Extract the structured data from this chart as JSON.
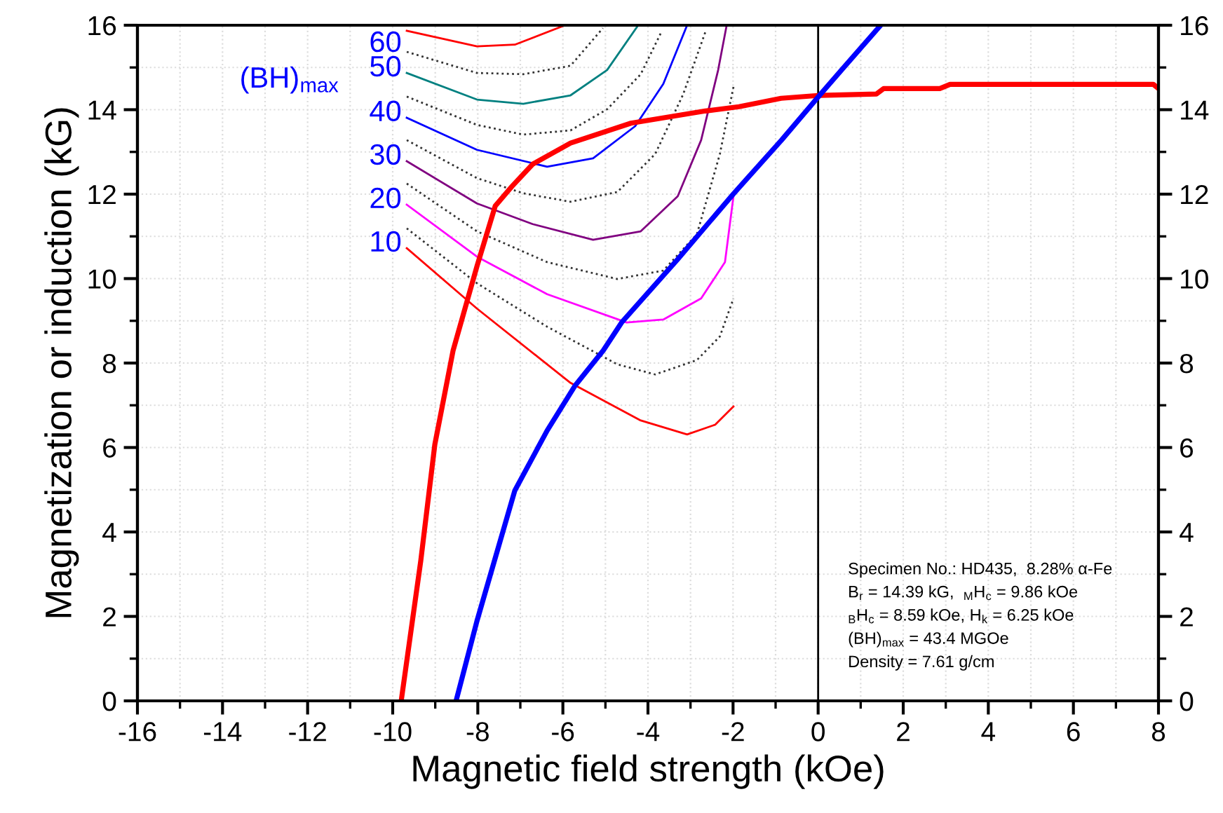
{
  "chart_data": {
    "type": "line",
    "xlabel": "Magnetic field strength (kOe)",
    "ylabel": "Magnetization or induction (kG)",
    "xlim": [
      -16,
      8
    ],
    "xticks": [
      -16,
      -14,
      -12,
      -10,
      -8,
      -6,
      -4,
      -2,
      0,
      2,
      4,
      6,
      8
    ],
    "ylim": [
      0,
      16
    ],
    "yticks": [
      0,
      2,
      4,
      6,
      8,
      10,
      12,
      14,
      16
    ],
    "y2lim": [
      0,
      16
    ],
    "y2ticks": [
      0,
      2,
      4,
      6,
      8,
      10,
      12,
      14,
      16
    ],
    "grid": true,
    "legend": false,
    "marker": "none",
    "ref_lines": [
      {
        "axis": "x",
        "value": 0,
        "color": "#000000",
        "line_style": "solid"
      }
    ],
    "series": [
      {
        "color": "#ff0000",
        "line_style": "solid",
        "x": [
          -9.8,
          -9.34,
          -9.01,
          -8.58,
          -8.02,
          -7.59,
          -7.2,
          -6.71,
          -5.82,
          -4.4,
          -2.65,
          -1.86,
          -0.87,
          0.05,
          1.37,
          1.54,
          2.86,
          3.1,
          7.88,
          8.0
        ],
        "values": [
          0,
          3.32,
          6.07,
          8.3,
          10.29,
          11.72,
          12.18,
          12.71,
          13.21,
          13.68,
          13.97,
          14.07,
          14.27,
          14.34,
          14.37,
          14.5,
          14.5,
          14.6,
          14.6,
          14.5
        ]
      },
      {
        "color": "#0000ff",
        "line_style": "solid",
        "x": [
          -8.51,
          -8.02,
          -7.13,
          -6.37,
          -5.71,
          -5.05,
          -4.62,
          -3.3,
          -1.98,
          -0.86,
          0.06,
          0.55,
          1.47
        ],
        "values": [
          0,
          1.89,
          4.98,
          6.4,
          7.47,
          8.3,
          8.96,
          10.46,
          12.02,
          13.28,
          14.37,
          14.94,
          16.0
        ]
      },
      {
        "name": "10",
        "color": "#ff0000",
        "line_style": "solid",
        "x": [
          -9.67,
          -8.02,
          -5.82,
          -4.17,
          -3.08,
          -2.42,
          -1.99
        ],
        "values": [
          10.72,
          9.29,
          7.53,
          6.64,
          6.31,
          6.54,
          6.97
        ]
      },
      {
        "color": "#333333",
        "line_style": "dotted",
        "x": [
          -9.67,
          -8.02,
          -6.37,
          -4.72,
          -3.83,
          -2.85,
          -2.31,
          -1.99
        ],
        "values": [
          11.19,
          9.89,
          8.86,
          7.97,
          7.73,
          8.07,
          8.63,
          9.53
        ]
      },
      {
        "name": "20",
        "color": "#ff00ff",
        "line_style": "solid",
        "x": [
          -9.67,
          -8.02,
          -6.37,
          -4.5,
          -3.64,
          -2.75,
          -2.19,
          -1.99
        ],
        "values": [
          11.75,
          10.52,
          9.63,
          8.96,
          9.03,
          9.53,
          10.39,
          11.95
        ]
      },
      {
        "color": "#333333",
        "line_style": "dotted",
        "x": [
          -9.67,
          -8.02,
          -6.37,
          -4.72,
          -3.64,
          -2.85,
          -2.31,
          -1.99
        ],
        "values": [
          12.25,
          11.12,
          10.39,
          9.99,
          10.19,
          11.05,
          12.95,
          14.54
        ]
      },
      {
        "name": "30",
        "color": "#800080",
        "line_style": "solid",
        "x": [
          -9.67,
          -8.02,
          -6.71,
          -5.29,
          -4.17,
          -3.3,
          -2.75,
          -2.35,
          -2.15
        ],
        "values": [
          12.78,
          11.78,
          11.29,
          10.92,
          11.12,
          11.95,
          13.28,
          14.94,
          16.0
        ]
      },
      {
        "color": "#333333",
        "line_style": "dotted",
        "x": [
          -9.67,
          -8.02,
          -6.93,
          -5.82,
          -4.72,
          -3.83,
          -3.17,
          -2.64
        ],
        "values": [
          13.28,
          12.38,
          12.02,
          11.82,
          12.05,
          12.95,
          14.37,
          15.87
        ]
      },
      {
        "name": "40",
        "color": "#0000ff",
        "line_style": "solid",
        "x": [
          -9.67,
          -8.02,
          -6.37,
          -5.29,
          -4.3,
          -3.64,
          -3.08
        ],
        "values": [
          13.81,
          13.05,
          12.65,
          12.85,
          13.61,
          14.61,
          16.0
        ]
      },
      {
        "color": "#333333",
        "line_style": "dotted",
        "x": [
          -9.67,
          -8.02,
          -6.93,
          -5.82,
          -4.96,
          -4.17,
          -3.67
        ],
        "values": [
          14.31,
          13.64,
          13.41,
          13.51,
          14.01,
          14.84,
          15.87
        ]
      },
      {
        "name": "50",
        "color": "#008080",
        "line_style": "solid",
        "x": [
          -9.67,
          -8.02,
          -6.93,
          -5.82,
          -4.96,
          -4.23
        ],
        "values": [
          14.87,
          14.24,
          14.14,
          14.34,
          14.94,
          16.0
        ]
      },
      {
        "color": "#333333",
        "line_style": "dotted",
        "x": [
          -9.67,
          -8.02,
          -6.93,
          -5.82,
          -5.06
        ],
        "values": [
          15.37,
          14.87,
          14.84,
          15.04,
          15.93
        ]
      },
      {
        "name": "60",
        "color": "#ff0000",
        "line_style": "solid",
        "x": [
          -9.67,
          -8.02,
          -7.13,
          -5.95
        ],
        "values": [
          15.87,
          15.5,
          15.54,
          16.0
        ]
      }
    ],
    "annotations": [
      "(BH)$_{max}$",
      "Specimen No.: HD435,  8.28% α-Fe",
      "B$_{r}$ = 14.39 kG,  $_{M}$H$_{c}$ = 9.86 kOe",
      "$_{B}$H$_{c}$ = 8.59 kOe, H$_{k}$ = 6.25 kOe",
      "(BH)$_{max}$ = 43.4 MGOe",
      "Density = 7.61 g/cm"
    ]
  }
}
